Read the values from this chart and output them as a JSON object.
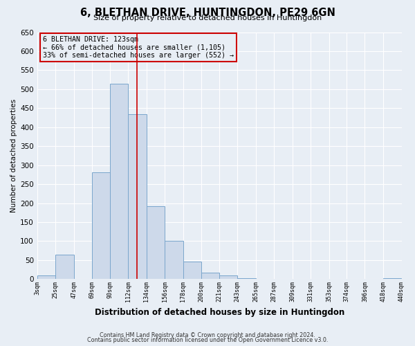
{
  "title": "6, BLETHAN DRIVE, HUNTINGDON, PE29 6GN",
  "subtitle": "Size of property relative to detached houses in Huntingdon",
  "xlabel": "Distribution of detached houses by size in Huntingdon",
  "ylabel": "Number of detached properties",
  "bar_color": "#cdd9ea",
  "bar_edge_color": "#7aa6cc",
  "background_color": "#e8eef5",
  "grid_color": "#ffffff",
  "vline_x": 123,
  "vline_color": "#cc0000",
  "box_color": "#cc0000",
  "footnote1": "Contains HM Land Registry data © Crown copyright and database right 2024.",
  "footnote2": "Contains public sector information licensed under the Open Government Licence v3.0.",
  "annotation_title": "6 BLETHAN DRIVE: 123sqm",
  "annotation_line1": "← 66% of detached houses are smaller (1,105)",
  "annotation_line2": "33% of semi-detached houses are larger (552) →",
  "bin_edges": [
    3,
    25,
    47,
    69,
    90,
    112,
    134,
    156,
    178,
    200,
    221,
    243,
    265,
    287,
    309,
    331,
    353,
    374,
    396,
    418,
    440
  ],
  "bin_heights": [
    10,
    65,
    0,
    282,
    515,
    435,
    192,
    100,
    46,
    17,
    10,
    2,
    1,
    0,
    0,
    0,
    0,
    0,
    0,
    3
  ],
  "tick_labels": [
    "3sqm",
    "25sqm",
    "47sqm",
    "69sqm",
    "90sqm",
    "112sqm",
    "134sqm",
    "156sqm",
    "178sqm",
    "200sqm",
    "221sqm",
    "243sqm",
    "265sqm",
    "287sqm",
    "309sqm",
    "331sqm",
    "353sqm",
    "374sqm",
    "396sqm",
    "418sqm",
    "440sqm"
  ],
  "ylim": [
    0,
    650
  ],
  "yticks": [
    0,
    50,
    100,
    150,
    200,
    250,
    300,
    350,
    400,
    450,
    500,
    550,
    600,
    650
  ]
}
